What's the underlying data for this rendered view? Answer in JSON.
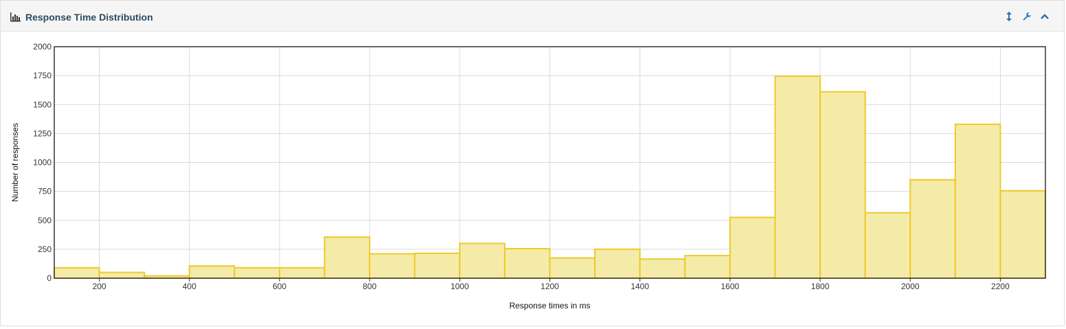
{
  "panel": {
    "title": "Response Time Distribution",
    "title_icon": "bar-chart-icon",
    "tools": [
      {
        "name": "resize-icon",
        "glyph": "↕"
      },
      {
        "name": "wrench-icon",
        "glyph": "wrench"
      },
      {
        "name": "collapse-icon",
        "glyph": "chevron-up"
      }
    ]
  },
  "colors": {
    "bar_fill": "#f5eba8",
    "bar_stroke": "#edc92a",
    "grid": "#d9d9d9",
    "axis": "#333333",
    "title": "#2b4a5e",
    "tool_icon": "#2a6ebb"
  },
  "chart_data": {
    "type": "bar",
    "xlabel": "Response times in ms",
    "ylabel": "Number of responses",
    "xlim": [
      100,
      2300
    ],
    "ylim": [
      0,
      2000
    ],
    "x_ticks": [
      200,
      400,
      600,
      800,
      1000,
      1200,
      1400,
      1600,
      1800,
      2000,
      2200
    ],
    "y_ticks": [
      0,
      250,
      500,
      750,
      1000,
      1250,
      1500,
      1750,
      2000
    ],
    "bin_width": 100,
    "bins": [
      {
        "start": 100,
        "value": 90
      },
      {
        "start": 200,
        "value": 50
      },
      {
        "start": 300,
        "value": 20
      },
      {
        "start": 400,
        "value": 105
      },
      {
        "start": 500,
        "value": 90
      },
      {
        "start": 600,
        "value": 90
      },
      {
        "start": 700,
        "value": 355
      },
      {
        "start": 800,
        "value": 210
      },
      {
        "start": 900,
        "value": 215
      },
      {
        "start": 1000,
        "value": 300
      },
      {
        "start": 1100,
        "value": 255
      },
      {
        "start": 1200,
        "value": 175
      },
      {
        "start": 1300,
        "value": 250
      },
      {
        "start": 1400,
        "value": 165
      },
      {
        "start": 1500,
        "value": 195
      },
      {
        "start": 1600,
        "value": 525
      },
      {
        "start": 1700,
        "value": 1745
      },
      {
        "start": 1800,
        "value": 1610
      },
      {
        "start": 1900,
        "value": 565
      },
      {
        "start": 2000,
        "value": 850
      },
      {
        "start": 2100,
        "value": 1330
      },
      {
        "start": 2200,
        "value": 755
      }
    ],
    "grid": true,
    "legend": "none"
  }
}
